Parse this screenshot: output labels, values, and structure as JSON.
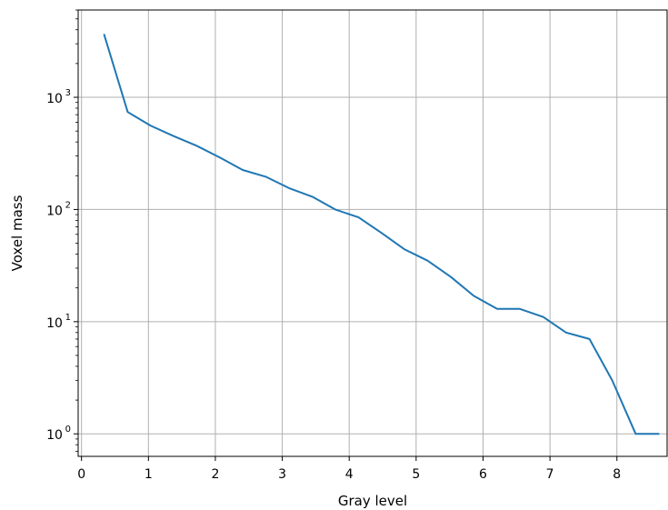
{
  "chart_data": {
    "type": "line",
    "title": "",
    "xlabel": "Gray level",
    "ylabel": "Voxel mass",
    "xscale": "linear",
    "yscale": "log",
    "xlim": [
      -0.05,
      8.75
    ],
    "ylim": [
      0.63,
      6000
    ],
    "grid": true,
    "legend": "none",
    "x_ticks": [
      0,
      1,
      2,
      3,
      4,
      5,
      6,
      7,
      8
    ],
    "x_tick_labels": [
      "0",
      "1",
      "2",
      "3",
      "4",
      "5",
      "6",
      "7",
      "8"
    ],
    "y_ticks": [
      1,
      10,
      100,
      1000
    ],
    "y_tick_labels": [
      {
        "base": "10",
        "exp": "0"
      },
      {
        "base": "10",
        "exp": "1"
      },
      {
        "base": "10",
        "exp": "2"
      },
      {
        "base": "10",
        "exp": "3"
      }
    ],
    "series": [
      {
        "color": "#1f77b4",
        "x": [
          0.34,
          0.69,
          1.03,
          1.38,
          1.72,
          2.07,
          2.41,
          2.76,
          3.1,
          3.45,
          3.79,
          4.14,
          4.48,
          4.83,
          5.17,
          5.52,
          5.86,
          6.21,
          6.55,
          6.9,
          7.24,
          7.59,
          7.93,
          8.28,
          8.62
        ],
        "y": [
          3600,
          740,
          560,
          450,
          370,
          290,
          225,
          195,
          155,
          130,
          100,
          85,
          62,
          44,
          35,
          25,
          17,
          13,
          13,
          11,
          8,
          7,
          3,
          1,
          1
        ]
      }
    ],
    "colors": {
      "line": "#1f77b4",
      "grid": "#b0b0b0",
      "axes": "#000000"
    }
  }
}
